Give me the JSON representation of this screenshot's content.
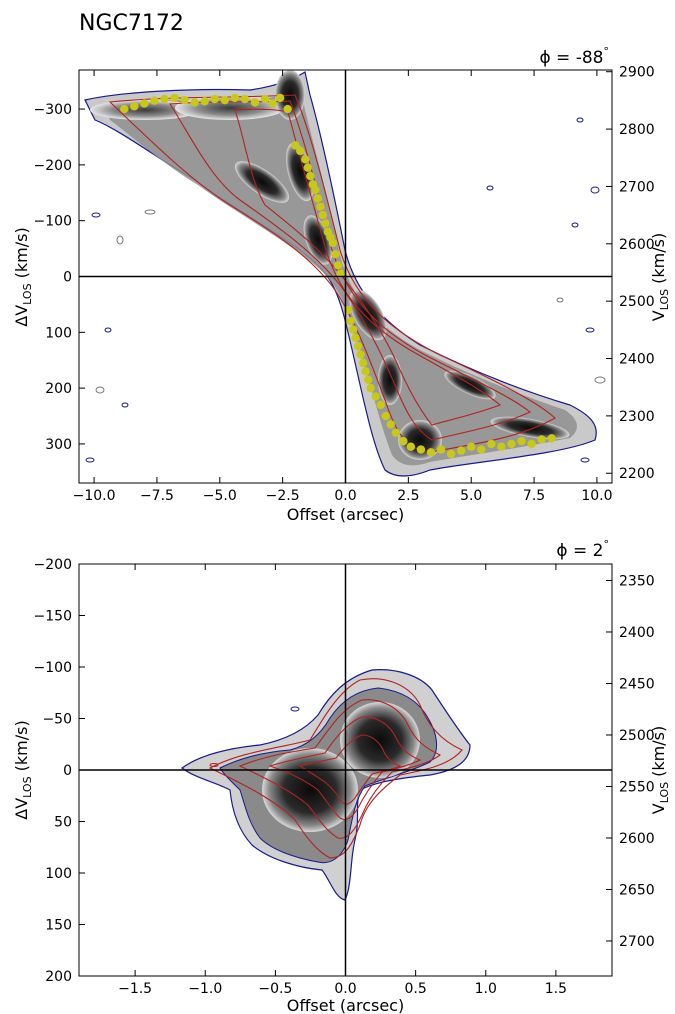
{
  "figure_title": "NGC7172",
  "chart_data": [
    {
      "type": "scatter",
      "panel": "top",
      "title": "ϕ = -88°",
      "phi_label_prefix": "ϕ = ",
      "phi_value": "-88",
      "phi_unit": "°",
      "xlabel": "Offset (arcsec)",
      "ylabel_left": "ΔV_LOS (km/s)",
      "ylabel_right": "V_LOS (km/s)",
      "xlim": [
        -10.6,
        10.6
      ],
      "ylim_left": [
        370,
        -370
      ],
      "ylim_right": [
        2183,
        2903
      ],
      "x_ticks": [
        -10.0,
        -7.5,
        -5.0,
        -2.5,
        0.0,
        2.5,
        5.0,
        7.5,
        10.0
      ],
      "x_tick_labels": [
        "−10.0",
        "−7.5",
        "−5.0",
        "−2.5",
        "0.0",
        "2.5",
        "5.0",
        "7.5",
        "10.0"
      ],
      "y_left_ticks": [
        -300,
        -200,
        -100,
        0,
        100,
        200,
        300
      ],
      "y_left_tick_labels": [
        "−300",
        "−200",
        "−100",
        "0",
        "100",
        "200",
        "300"
      ],
      "y_right_ticks": [
        2200,
        2300,
        2400,
        2500,
        2600,
        2700,
        2800,
        2900
      ],
      "y_right_tick_labels": [
        "2200",
        "2300",
        "2400",
        "2500",
        "2600",
        "2700",
        "2800",
        "2900"
      ],
      "grid": false,
      "marker_color": "#c8c81a",
      "observed_contour_color": "#1a1a8c",
      "model_contour_color": "#b22222",
      "series": [
        {
          "values_x": [
            -8.8,
            -8.4,
            -8.0,
            -7.6,
            -7.2,
            -6.8,
            -6.4,
            -6.0,
            -5.6,
            -5.2,
            -4.8,
            -4.4,
            -4.0,
            -3.6,
            -3.2,
            -2.9,
            -2.6,
            -2.3,
            -2.0,
            -1.8,
            -1.6,
            -1.5,
            -1.4,
            -1.3,
            -1.2,
            -1.1,
            -1.0,
            -0.9,
            -0.8,
            -0.7,
            -0.6,
            -0.5,
            -0.4,
            -0.3,
            -0.2,
            0.1,
            0.2,
            0.3,
            0.4,
            0.5,
            0.6,
            0.7,
            0.8,
            0.9,
            1.0,
            1.2,
            1.4,
            1.6,
            1.8,
            2.0,
            2.3,
            2.6,
            3.0,
            3.4,
            3.8,
            4.2,
            4.6,
            5.0,
            5.4,
            5.8,
            6.2,
            6.6,
            7.0,
            7.4,
            7.8,
            8.2
          ],
          "values_y": [
            -300,
            -305,
            -310,
            -315,
            -318,
            -320,
            -316,
            -312,
            -314,
            -318,
            -316,
            -320,
            -318,
            -312,
            -318,
            -310,
            -320,
            -300,
            -235,
            -225,
            -210,
            -195,
            -180,
            -165,
            -155,
            -140,
            -125,
            -110,
            -95,
            -80,
            -70,
            -60,
            -40,
            -20,
            -5,
            60,
            80,
            95,
            110,
            125,
            140,
            155,
            170,
            185,
            200,
            215,
            230,
            250,
            265,
            280,
            295,
            305,
            310,
            315,
            310,
            318,
            312,
            305,
            310,
            300,
            305,
            300,
            295,
            300,
            292,
            290
          ]
        }
      ]
    },
    {
      "type": "scatter",
      "panel": "bottom",
      "title": "ϕ = 2°",
      "phi_label_prefix": "ϕ = ",
      "phi_value": "2",
      "phi_unit": "°",
      "xlabel": "Offset (arcsec)",
      "ylabel_left": "ΔV_LOS (km/s)",
      "ylabel_right": "V_LOS (km/s)",
      "xlim": [
        -1.9,
        1.9
      ],
      "ylim_left": [
        200,
        -200
      ],
      "ylim_right": [
        2734,
        2334
      ],
      "x_ticks": [
        -1.5,
        -1.0,
        -0.5,
        0.0,
        0.5,
        1.0,
        1.5
      ],
      "x_tick_labels": [
        "−1.5",
        "−1.0",
        "−0.5",
        "0.0",
        "0.5",
        "1.0",
        "1.5"
      ],
      "y_left_ticks": [
        -200,
        -150,
        -100,
        -50,
        0,
        50,
        100,
        150,
        200
      ],
      "y_left_tick_labels": [
        "−200",
        "−150",
        "−100",
        "−50",
        "0",
        "50",
        "100",
        "150",
        "200"
      ],
      "y_right_ticks": [
        2350,
        2400,
        2450,
        2500,
        2550,
        2600,
        2650,
        2700
      ],
      "y_right_tick_labels": [
        "2350",
        "2400",
        "2450",
        "2500",
        "2550",
        "2600",
        "2650",
        "2700"
      ],
      "grid": false,
      "observed_contour_color": "#1a1a8c",
      "model_contour_color": "#b22222"
    }
  ]
}
